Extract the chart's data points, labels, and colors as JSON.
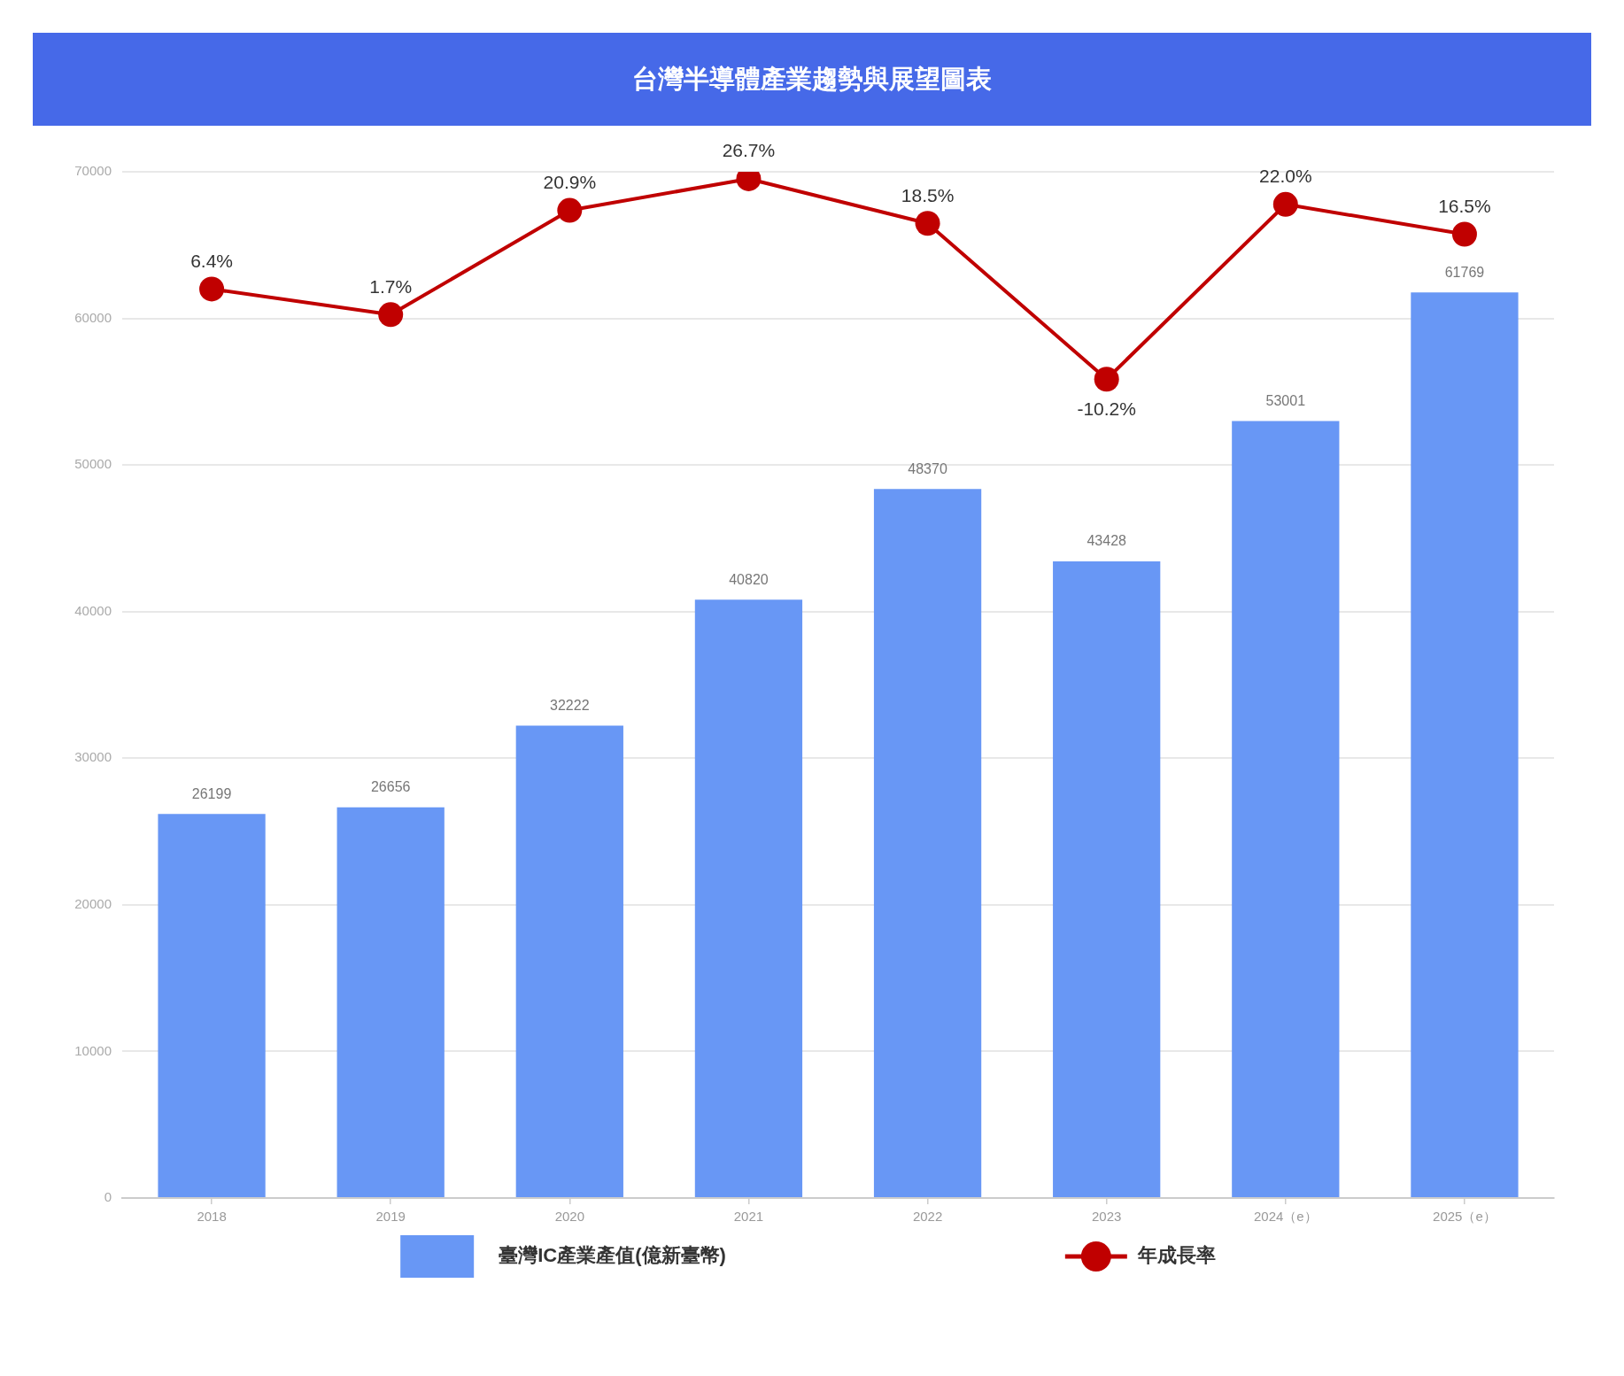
{
  "chart_data": {
    "type": "bar",
    "title": "台灣半導體產業趨勢與展望圖表",
    "categories": [
      "2018",
      "2019",
      "2020",
      "2021",
      "2022",
      "2023",
      "2024（e）",
      "2025（e）"
    ],
    "series": [
      {
        "name": "臺灣IC產業產值(億新臺幣)",
        "color": "#6897f5",
        "values": [
          26199,
          26656,
          32222,
          40820,
          48370,
          43428,
          53001,
          61769
        ],
        "value_labels": [
          "26199",
          "26656",
          "32222",
          "40820",
          "48370",
          "43428",
          "53001",
          "61769"
        ]
      },
      {
        "name": "年成長率",
        "type": "line",
        "axis": "y2",
        "color": "#c00000",
        "values": [
          6.4,
          1.7,
          20.9,
          26.7,
          18.5,
          -10.2,
          22.0,
          16.5
        ],
        "value_labels": [
          "6.4%",
          "1.7%",
          "20.9%",
          "26.7%",
          "18.5%",
          "-10.2%",
          "22.0%",
          "16.5%"
        ]
      }
    ],
    "ylim": [
      0,
      70000
    ],
    "yticks": [
      0,
      10000,
      20000,
      30000,
      40000,
      50000,
      60000,
      70000
    ],
    "y2lim": [
      -161,
      28
    ],
    "grid": "y",
    "legend": "bottom",
    "marker": "circle",
    "line_style": "solid"
  }
}
